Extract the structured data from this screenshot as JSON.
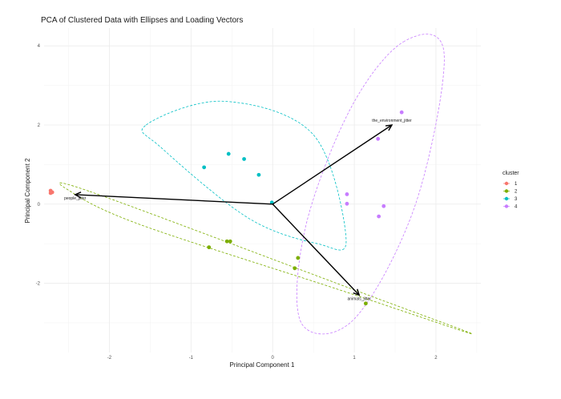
{
  "chart_data": {
    "type": "scatter",
    "title": "PCA of Clustered Data with Ellipses and Loading Vectors",
    "xlabel": "Principal Component 1",
    "ylabel": "Principal Component 2",
    "xlim": [
      -2.8,
      2.55
    ],
    "ylim": [
      -3.75,
      4.45
    ],
    "x_ticks": [
      -2,
      -1,
      0,
      1,
      2
    ],
    "y_ticks": [
      -2,
      0,
      2,
      4
    ],
    "grid": true,
    "legend": {
      "title": "cluster",
      "position": "right"
    },
    "series": [
      {
        "name": "1",
        "color": "#F8766D",
        "points": [
          [
            -2.72,
            0.34
          ],
          [
            -2.7,
            0.3
          ],
          [
            -2.72,
            0.28
          ]
        ]
      },
      {
        "name": "2",
        "color": "#7CAE00",
        "points": [
          [
            -0.78,
            -1.09
          ],
          [
            -0.56,
            -0.94
          ],
          [
            -0.52,
            -0.94
          ],
          [
            0.31,
            -1.36
          ],
          [
            0.27,
            -1.62
          ],
          [
            1.14,
            -2.51
          ]
        ]
      },
      {
        "name": "3",
        "color": "#00BFC4",
        "points": [
          [
            -0.84,
            0.93
          ],
          [
            -0.54,
            1.27
          ],
          [
            -0.35,
            1.14
          ],
          [
            -0.17,
            0.74
          ],
          [
            -0.01,
            0.04
          ]
        ]
      },
      {
        "name": "4",
        "color": "#C77CFF",
        "points": [
          [
            0.91,
            0.25
          ],
          [
            0.91,
            0.01
          ],
          [
            1.29,
            1.65
          ],
          [
            1.58,
            2.32
          ],
          [
            1.36,
            -0.05
          ],
          [
            1.3,
            -0.31
          ]
        ]
      }
    ],
    "ellipses": [
      {
        "cluster": "2",
        "color": "#7CAE00",
        "center": [
          0.25,
          -1.32
        ],
        "points": [
          [
            -2.24,
            0.32
          ],
          [
            1.12,
            -2.26
          ],
          [
            2.44,
            -3.28
          ],
          [
            0.78,
            -2.14
          ],
          [
            -1.62,
            -0.52
          ],
          [
            -2.46,
            0.3
          ]
        ]
      },
      {
        "cluster": "3",
        "color": "#00BFC4",
        "center": [
          -0.5,
          0.91
        ],
        "points": [
          [
            -1.55,
            2.0
          ],
          [
            -0.6,
            2.6
          ],
          [
            0.5,
            1.75
          ],
          [
            0.9,
            -0.9
          ],
          [
            0.55,
            -1.0
          ],
          [
            -0.3,
            -0.35
          ],
          [
            -1.35,
            1.4
          ]
        ]
      },
      {
        "cluster": "4",
        "color": "#C77CFF",
        "center": [
          1.32,
          0.4
        ],
        "points": [
          [
            1.6,
            4.1
          ],
          [
            2.1,
            3.8
          ],
          [
            1.75,
            0.0
          ],
          [
            1.0,
            -2.9
          ],
          [
            0.35,
            -3.0
          ],
          [
            0.4,
            -0.6
          ],
          [
            0.95,
            2.4
          ]
        ]
      }
    ],
    "loadings": [
      {
        "label": "people_jitter",
        "x": -2.42,
        "y": 0.24
      },
      {
        "label": "the_environment_jitter",
        "x": 1.46,
        "y": 2.0
      },
      {
        "label": "animals_jitter",
        "x": 1.06,
        "y": -2.3
      }
    ]
  }
}
